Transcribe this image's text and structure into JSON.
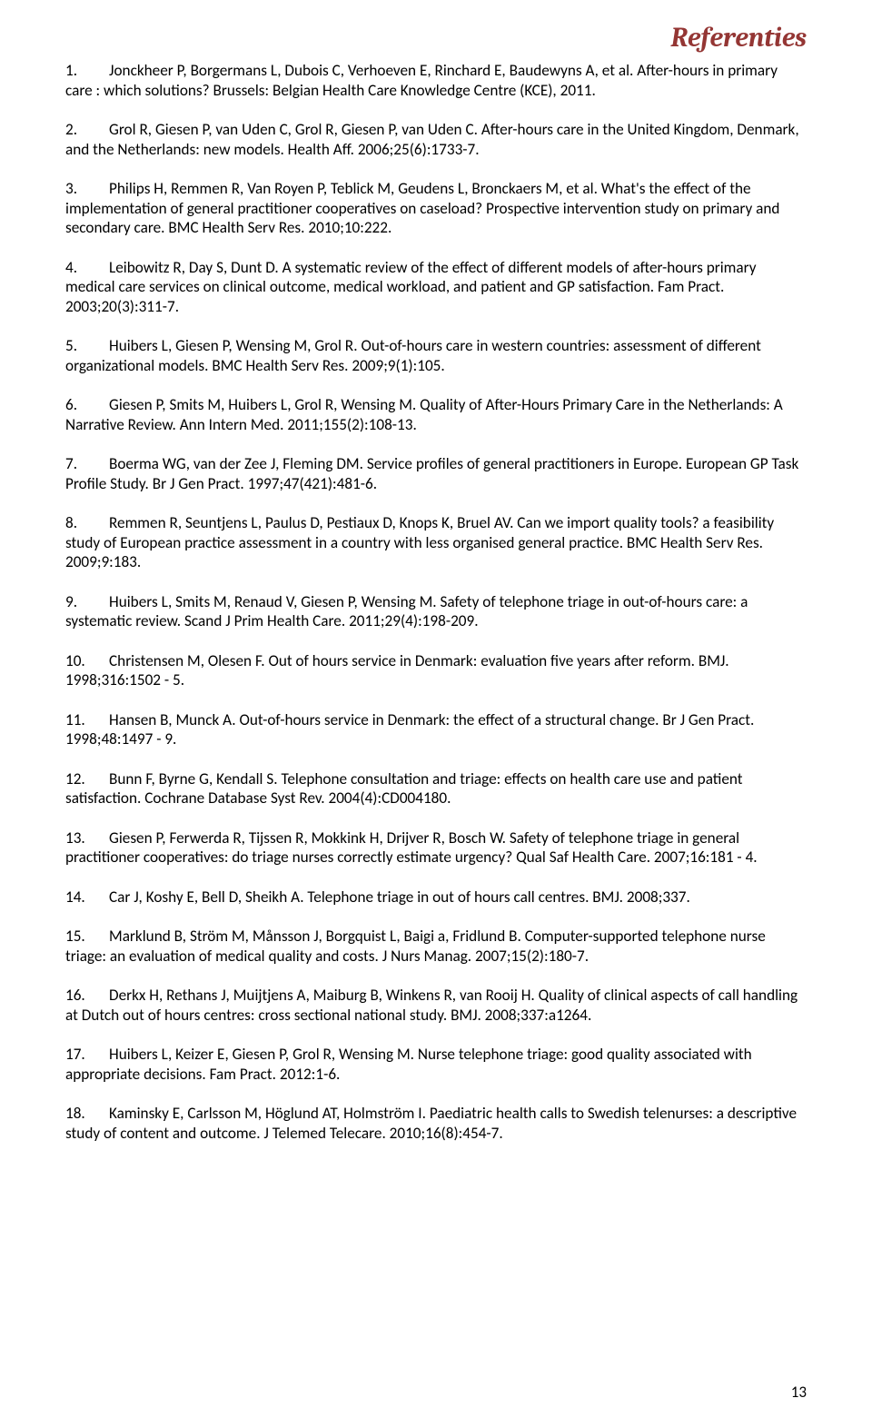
{
  "title": "Referenties",
  "colors": {
    "title_color": "#943634",
    "text_color": "#000000",
    "background": "#ffffff"
  },
  "typography": {
    "title_font": "Cambria",
    "title_fontsize": 30,
    "title_weight": "bold",
    "title_style": "italic",
    "body_font": "Calibri",
    "body_fontsize": 17.2
  },
  "page_number": "13",
  "references": [
    {
      "num": "1.",
      "text": "Jonckheer P, Borgermans L, Dubois C, Verhoeven E, Rinchard E, Baudewyns A, et al. After-hours in primary care : which solutions? Brussels: Belgian Health Care Knowledge Centre (KCE), 2011."
    },
    {
      "num": "2.",
      "text": "Grol R, Giesen P, van Uden C, Grol R, Giesen P, van Uden C. After-hours care in the United Kingdom, Denmark, and the Netherlands: new models. Health Aff. 2006;25(6):1733-7."
    },
    {
      "num": "3.",
      "text": "Philips H, Remmen R, Van Royen P, Teblick M, Geudens L, Bronckaers M, et al. What's the effect of the implementation of general practitioner cooperatives on caseload? Prospective intervention study on primary and secondary care. BMC Health Serv Res. 2010;10:222."
    },
    {
      "num": "4.",
      "text": "Leibowitz R, Day S, Dunt D. A systematic review of the effect of different models of after-hours primary medical care services on clinical outcome, medical workload, and patient and GP satisfaction. Fam Pract. 2003;20(3):311-7."
    },
    {
      "num": "5.",
      "text": "Huibers L, Giesen P, Wensing M, Grol R. Out-of-hours care in western countries: assessment of different organizational models. BMC Health Serv Res. 2009;9(1):105."
    },
    {
      "num": "6.",
      "text": "Giesen P, Smits M, Huibers L, Grol R, Wensing M. Quality of After-Hours Primary Care in the Netherlands: A Narrative Review. Ann Intern Med. 2011;155(2):108-13."
    },
    {
      "num": "7.",
      "text": "Boerma WG, van der Zee J, Fleming DM. Service profiles of general practitioners in Europe. European GP Task Profile Study. Br J Gen Pract. 1997;47(421):481-6."
    },
    {
      "num": "8.",
      "text": "Remmen R, Seuntjens L, Paulus D, Pestiaux D, Knops K, Bruel AV. Can we import quality tools? a feasibility study of European practice assessment in a country with less organised general practice. BMC Health Serv Res. 2009;9:183."
    },
    {
      "num": "9.",
      "text": "Huibers L, Smits M, Renaud V, Giesen P, Wensing M. Safety of telephone triage in out-of-hours care: a systematic review. Scand J Prim Health Care. 2011;29(4):198-209."
    },
    {
      "num": "10.",
      "text": "Christensen M, Olesen F. Out of hours service in Denmark: evaluation five years after reform. BMJ. 1998;316:1502 - 5."
    },
    {
      "num": "11.",
      "text": "Hansen B, Munck A. Out-of-hours service in Denmark: the effect of a structural change. Br J Gen Pract. 1998;48:1497 - 9."
    },
    {
      "num": "12.",
      "text": "Bunn F, Byrne G, Kendall S. Telephone consultation and triage: effects on health care use and patient satisfaction. Cochrane Database Syst Rev. 2004(4):CD004180."
    },
    {
      "num": "13.",
      "text": "Giesen P, Ferwerda R, Tijssen R, Mokkink H, Drijver R, Bosch W. Safety of telephone triage in general practitioner cooperatives: do triage nurses correctly estimate urgency? Qual Saf Health Care. 2007;16:181 - 4."
    },
    {
      "num": "14.",
      "text": "Car J, Koshy E, Bell D, Sheikh A. Telephone triage in out of hours call centres. BMJ. 2008;337."
    },
    {
      "num": "15.",
      "text": "Marklund B, Ström M, Månsson J, Borgquist L, Baigi a, Fridlund B. Computer-supported telephone nurse triage: an evaluation of medical quality and costs. J Nurs Manag. 2007;15(2):180-7."
    },
    {
      "num": "16.",
      "text": "Derkx H, Rethans J, Muijtjens A, Maiburg B, Winkens R, van Rooij H. Quality of clinical aspects of call handling at Dutch out of hours centres: cross sectional national study. BMJ. 2008;337:a1264."
    },
    {
      "num": "17.",
      "text": "Huibers L, Keizer E, Giesen P, Grol R, Wensing M. Nurse telephone triage: good quality associated with appropriate decisions. Fam Pract. 2012:1-6."
    },
    {
      "num": "18.",
      "text": "Kaminsky E, Carlsson M, Höglund AT, Holmström I. Paediatric health calls to Swedish telenurses: a descriptive study of content and outcome. J Telemed Telecare. 2010;16(8):454-7."
    }
  ]
}
